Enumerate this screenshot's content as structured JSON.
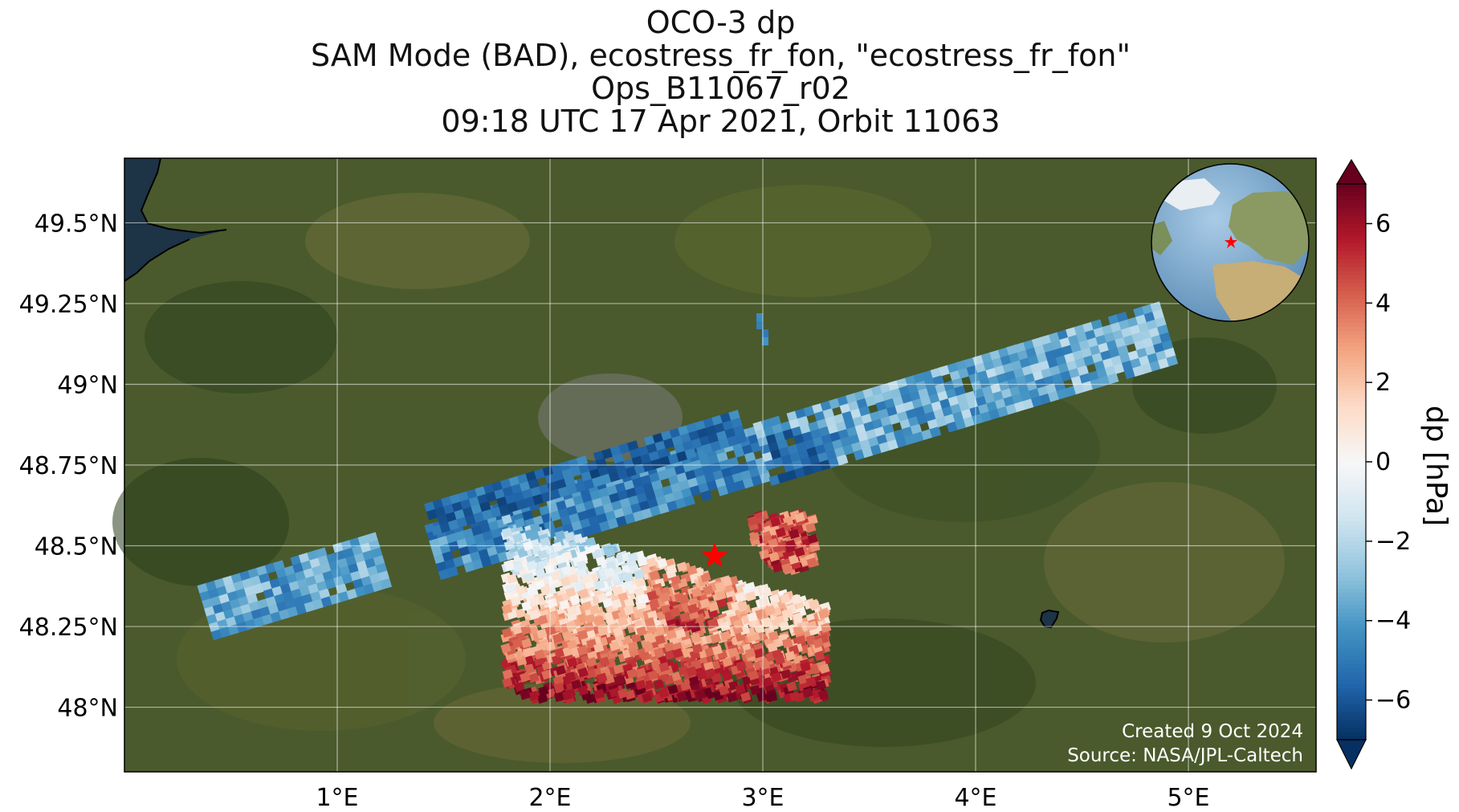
{
  "title": {
    "line1": "OCO-3 dp",
    "line2": "SAM Mode (BAD), ecostress_fr_fon, \"ecostress_fr_fon\"",
    "line3": "Ops_B11067_r02",
    "line4": "09:18 UTC 17 Apr 2021, Orbit 11063"
  },
  "map": {
    "lon_range": [
      0.0,
      5.6
    ],
    "lat_range": [
      47.8,
      49.7
    ],
    "lon_ticks": [
      {
        "value": 1,
        "label": "1°E"
      },
      {
        "value": 2,
        "label": "2°E"
      },
      {
        "value": 3,
        "label": "3°E"
      },
      {
        "value": 4,
        "label": "4°E"
      },
      {
        "value": 5,
        "label": "5°E"
      }
    ],
    "lat_ticks": [
      {
        "value": 49.5,
        "label": "49.5°N"
      },
      {
        "value": 49.25,
        "label": "49.25°N"
      },
      {
        "value": 49.0,
        "label": "49°N"
      },
      {
        "value": 48.75,
        "label": "48.75°N"
      },
      {
        "value": 48.5,
        "label": "48.5°N"
      },
      {
        "value": 48.25,
        "label": "48.25°N"
      },
      {
        "value": 48.0,
        "label": "48°N"
      }
    ],
    "target": {
      "lon": 2.78,
      "lat": 48.48
    },
    "background": "satellite imagery",
    "land_color": "#4a5a2c",
    "water_color": "#1d3346"
  },
  "colorbar": {
    "label": "dp [hPa]",
    "range": [
      -7,
      7
    ],
    "ticks": [
      "−6",
      "−4",
      "−2",
      "0",
      "2",
      "4",
      "6"
    ],
    "tick_values": [
      -6,
      -4,
      -2,
      0,
      2,
      4,
      6
    ],
    "colormap": "RdBu_r",
    "extend": "both"
  },
  "inset": {
    "type": "globe",
    "marker": "red star"
  },
  "credits": {
    "created": "Created 9 Oct 2024",
    "source": "Source: NASA/JPL-Caltech"
  }
}
